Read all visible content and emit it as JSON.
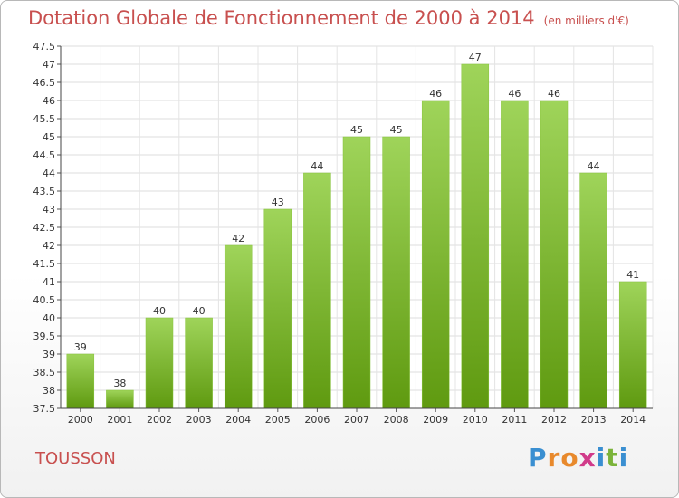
{
  "chart_data": {
    "type": "bar",
    "title": "Dotation Globale de Fonctionnement de 2000 à 2014",
    "subtitle": "(en milliers d'€)",
    "categories": [
      "2000",
      "2001",
      "2002",
      "2003",
      "2004",
      "2005",
      "2006",
      "2007",
      "2008",
      "2009",
      "2010",
      "2011",
      "2012",
      "2013",
      "2014"
    ],
    "values": [
      39,
      38,
      40,
      40,
      42,
      43,
      44,
      45,
      45,
      46,
      47,
      46,
      46,
      44,
      41
    ],
    "ylim": [
      37.5,
      47.5
    ],
    "yticks": [
      37.5,
      38,
      38.5,
      39,
      39.5,
      40,
      40.5,
      41,
      41.5,
      42,
      42.5,
      43,
      43.5,
      44,
      44.5,
      45,
      45.5,
      46,
      46.5,
      47,
      47.5
    ],
    "grid": true,
    "bar_color_top": "#9fd45a",
    "bar_color_bottom": "#5f9a10"
  },
  "commune": "TOUSSON",
  "logo": {
    "letters": [
      "P",
      "r",
      "o",
      "x",
      "i",
      "t",
      "i"
    ],
    "colors": [
      "#3a8fd1",
      "#e8892c",
      "#e8892c",
      "#d13b8a",
      "#3a8fd1",
      "#7bb33a",
      "#3a8fd1"
    ]
  }
}
